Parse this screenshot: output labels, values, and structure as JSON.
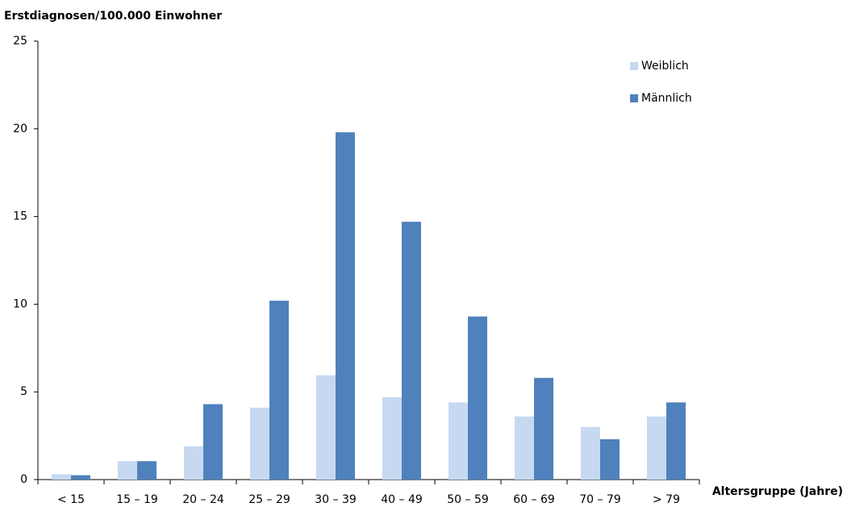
{
  "chart_data": {
    "type": "bar",
    "y_label": "Erstdiagnosen/100.000 Einwohner",
    "x_label": "Altersgruppe (Jahre)",
    "categories": [
      "< 15",
      "15 – 19",
      "20 – 24",
      "25 – 29",
      "30 – 39",
      "40 – 49",
      "50 – 59",
      "60 – 69",
      "70 – 79",
      "> 79"
    ],
    "series": [
      {
        "name": "Weiblich",
        "color": "#c6d9f1",
        "values": [
          0.3,
          1.05,
          1.9,
          4.1,
          5.95,
          4.7,
          4.4,
          3.6,
          3.0,
          3.6
        ]
      },
      {
        "name": "Männlich",
        "color": "#4f81bd",
        "values": [
          0.25,
          1.05,
          4.3,
          10.2,
          19.8,
          14.7,
          9.3,
          5.8,
          2.3,
          4.4
        ]
      }
    ],
    "ylim": [
      0,
      25
    ],
    "yticks": [
      0,
      5,
      10,
      15,
      20,
      25
    ],
    "grid": false,
    "legend": "top-right"
  }
}
